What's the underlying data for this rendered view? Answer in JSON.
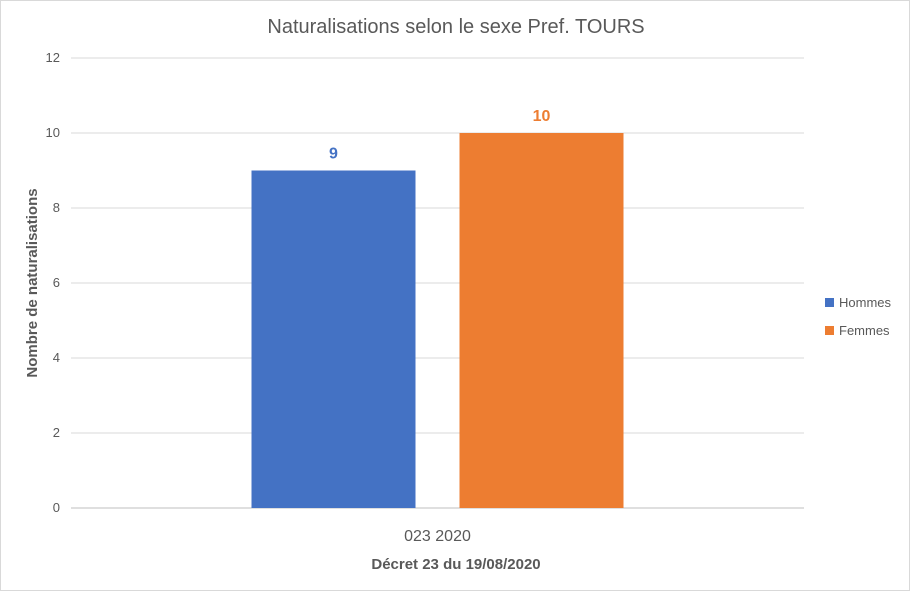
{
  "chart_data": {
    "type": "bar",
    "title": "Naturalisations selon le sexe Pref. TOURS",
    "categories": [
      "023 2020"
    ],
    "series": [
      {
        "name": "Hommes",
        "values": [
          9
        ],
        "color": "#4472C4"
      },
      {
        "name": "Femmes",
        "values": [
          10
        ],
        "color": "#ED7D31"
      }
    ],
    "xlabel": "Décret 23 du 19/08/2020",
    "ylabel": "Nombre de naturalisations",
    "ylim": [
      0,
      12
    ],
    "yticks": [
      0,
      2,
      4,
      6,
      8,
      10,
      12
    ],
    "grid": true,
    "legend_position": "right",
    "data_labels": true
  }
}
